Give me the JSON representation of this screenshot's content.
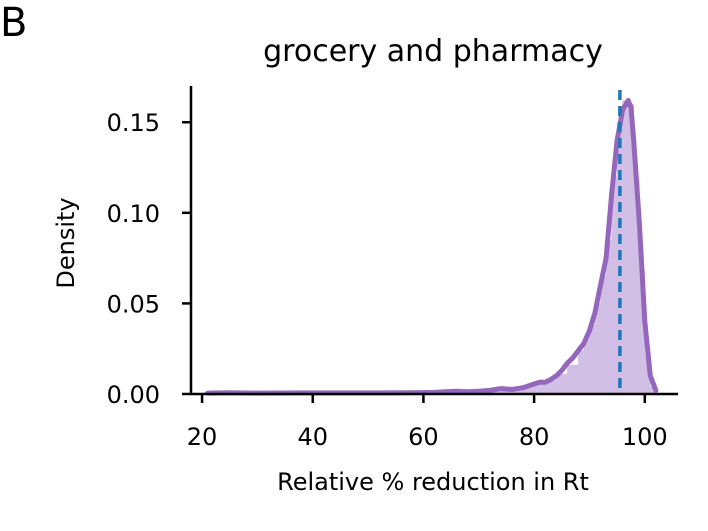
{
  "panel_label": "B",
  "chart_data": {
    "type": "area",
    "title": "grocery and pharmacy",
    "xlabel": "Relative % reduction in Rt",
    "ylabel": "Density",
    "xlim": [
      18,
      106
    ],
    "ylim": [
      0,
      0.17
    ],
    "x_ticks": [
      20,
      40,
      60,
      80,
      100
    ],
    "x_tick_labels": [
      "20",
      "40",
      "60",
      "80",
      "100"
    ],
    "y_ticks": [
      0,
      0.05,
      0.1,
      0.15
    ],
    "y_tick_labels": [
      "0.00",
      "0.05",
      "0.10",
      "0.15"
    ],
    "grid": false,
    "legend": "none",
    "kde": {
      "x": [
        21,
        25,
        30,
        40,
        50,
        60,
        62,
        64,
        66,
        68,
        70,
        72,
        74,
        76,
        78,
        80,
        81,
        82,
        83,
        84,
        85,
        86,
        87,
        88,
        89,
        90,
        91,
        92,
        93,
        94,
        95,
        96,
        97,
        97.5,
        98,
        99,
        100,
        101,
        102
      ],
      "y": [
        0.0005,
        0.0007,
        0.0005,
        0.0006,
        0.0006,
        0.0008,
        0.0009,
        0.0012,
        0.0015,
        0.0012,
        0.0015,
        0.002,
        0.003,
        0.0025,
        0.0035,
        0.0055,
        0.0065,
        0.0065,
        0.008,
        0.01,
        0.013,
        0.017,
        0.02,
        0.024,
        0.028,
        0.035,
        0.045,
        0.06,
        0.075,
        0.11,
        0.14,
        0.157,
        0.162,
        0.158,
        0.14,
        0.095,
        0.04,
        0.01,
        0.002
      ]
    },
    "histogram": {
      "bin_edges": [
        60,
        64,
        68,
        72,
        76,
        80,
        82,
        84,
        86,
        88,
        89,
        90,
        91,
        92,
        93,
        94,
        95,
        96,
        97,
        98,
        99,
        100,
        101,
        102
      ],
      "values": [
        0.001,
        0.0012,
        0.0018,
        0.0028,
        0.0035,
        0.006,
        0.0075,
        0.011,
        0.016,
        0.024,
        0.03,
        0.038,
        0.05,
        0.065,
        0.085,
        0.12,
        0.15,
        0.162,
        0.16,
        0.118,
        0.068,
        0.022,
        0.004
      ]
    },
    "vline": {
      "x": 95.5
    },
    "colors": {
      "kde": "#9467bd",
      "hist": "#d2bfe5",
      "vline": "#1f77b4"
    }
  }
}
